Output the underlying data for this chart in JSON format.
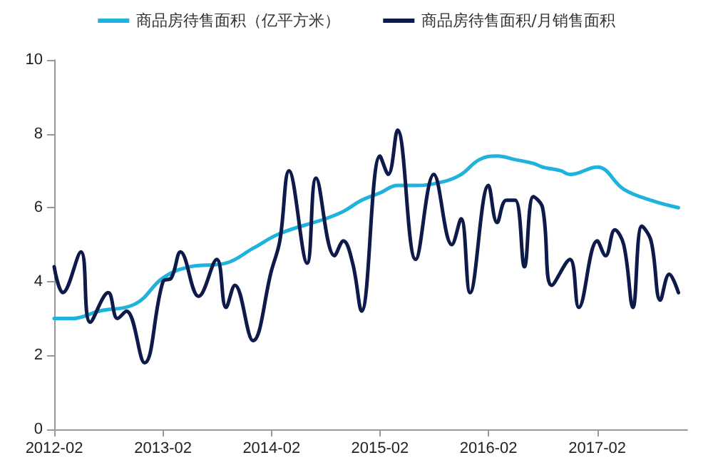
{
  "chart_data": {
    "type": "line",
    "legend": "top",
    "grid": false,
    "marker": "none",
    "line_style": "solid",
    "xlim": [
      "2012-02",
      "2017-12"
    ],
    "xticks": [
      "2012-02",
      "2013-02",
      "2014-02",
      "2015-02",
      "2016-02",
      "2017-02"
    ],
    "ylim": [
      0,
      10
    ],
    "yticks": [
      0,
      2,
      4,
      6,
      8,
      10
    ],
    "series": [
      {
        "name": "商品房待售面积（亿平方米）",
        "color": "#1fb2dc",
        "x": [
          "2012-02",
          "2012-04",
          "2012-07",
          "2012-11",
          "2013-02",
          "2013-05",
          "2013-09",
          "2013-12",
          "2014-03",
          "2014-08",
          "2014-10",
          "2014-12",
          "2015-02",
          "2015-04",
          "2015-06",
          "2015-09",
          "2015-11",
          "2016-01",
          "2016-03",
          "2016-05",
          "2016-07",
          "2016-08",
          "2016-10",
          "2016-11",
          "2017-02",
          "2017-05",
          "2017-08",
          "2017-11"
        ],
        "values": [
          3.0,
          3.0,
          3.2,
          3.4,
          4.1,
          4.4,
          4.5,
          4.9,
          5.3,
          5.7,
          5.9,
          6.2,
          6.4,
          6.6,
          6.6,
          6.7,
          6.9,
          7.3,
          7.4,
          7.3,
          7.2,
          7.1,
          7.0,
          6.9,
          7.1,
          6.5,
          6.2,
          6.0
        ]
      },
      {
        "name": "商品房待售面积/月销售面积",
        "color": "#0d1a4a",
        "x": [
          "2012-02",
          "2012-03",
          "2012-05",
          "2012-06",
          "2012-08",
          "2012-09",
          "2012-10",
          "2012-12",
          "2013-02",
          "2013-03",
          "2013-04",
          "2013-06",
          "2013-08",
          "2013-09",
          "2013-10",
          "2013-12",
          "2014-02",
          "2014-03",
          "2014-04",
          "2014-06",
          "2014-07",
          "2014-09",
          "2014-10",
          "2014-11",
          "2014-12",
          "2015-02",
          "2015-03",
          "2015-04",
          "2015-06",
          "2015-08",
          "2015-10",
          "2015-11",
          "2015-12",
          "2016-02",
          "2016-03",
          "2016-04",
          "2016-05",
          "2016-06",
          "2016-07",
          "2016-08",
          "2016-09",
          "2016-11",
          "2016-12",
          "2017-02",
          "2017-03",
          "2017-04",
          "2017-05",
          "2017-06",
          "2017-07",
          "2017-08",
          "2017-09",
          "2017-10",
          "2017-11"
        ],
        "values": [
          4.4,
          3.7,
          4.8,
          2.9,
          3.7,
          3.0,
          3.2,
          1.8,
          4.0,
          4.1,
          4.8,
          3.6,
          4.6,
          3.3,
          3.9,
          2.4,
          4.3,
          5.1,
          7.0,
          4.5,
          6.8,
          4.7,
          5.1,
          4.5,
          3.2,
          7.4,
          6.9,
          8.1,
          4.6,
          6.9,
          5.0,
          5.7,
          3.7,
          6.6,
          5.6,
          6.2,
          6.2,
          4.4,
          6.3,
          6.0,
          3.9,
          4.6,
          3.3,
          5.1,
          4.7,
          5.4,
          5.0,
          3.3,
          5.5,
          5.1,
          3.5,
          4.2,
          3.7
        ]
      }
    ]
  }
}
